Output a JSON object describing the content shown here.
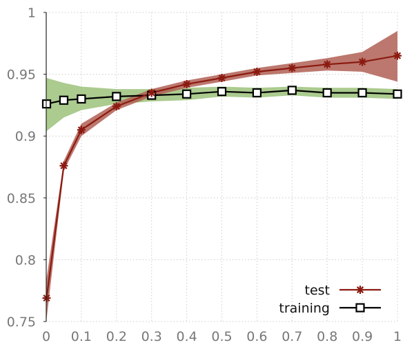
{
  "chart_data": {
    "type": "line",
    "title": "",
    "xlabel": "",
    "ylabel": "",
    "xlim": [
      0,
      1
    ],
    "ylim": [
      0.75,
      1
    ],
    "xticks": [
      0,
      0.1,
      0.2,
      0.3,
      0.4,
      0.5,
      0.6,
      0.7,
      0.8,
      0.9,
      1
    ],
    "xtick_labels": [
      "0",
      "0.1",
      "0.2",
      "0.3",
      "0.4",
      "0.5",
      "0.6",
      "0.7",
      "0.8",
      "0.9",
      "1"
    ],
    "yticks": [
      0.75,
      0.8,
      0.85,
      0.9,
      0.95,
      1
    ],
    "ytick_labels": [
      "0.75",
      "0.8",
      "0.85",
      "0.9",
      "0.95",
      "1"
    ],
    "grid": true,
    "legend_position": "bottom-right",
    "x": [
      0.001,
      0.05,
      0.1,
      0.2,
      0.3,
      0.4,
      0.5,
      0.6,
      0.7,
      0.8,
      0.9,
      1.0
    ],
    "series": [
      {
        "name": "test",
        "marker": "asterisk",
        "color": "#8b1a10",
        "band_color": "#b06055",
        "values": [
          0.769,
          0.876,
          0.905,
          0.924,
          0.935,
          0.942,
          0.947,
          0.952,
          0.955,
          0.958,
          0.96,
          0.965
        ],
        "lower": [
          0.752,
          0.872,
          0.9,
          0.921,
          0.932,
          0.939,
          0.944,
          0.949,
          0.951,
          0.953,
          0.952,
          0.944
        ],
        "upper": [
          0.785,
          0.88,
          0.91,
          0.927,
          0.938,
          0.945,
          0.95,
          0.955,
          0.959,
          0.963,
          0.968,
          0.985
        ]
      },
      {
        "name": "training",
        "marker": "square",
        "color": "#000000",
        "band_color": "#8fba6a",
        "values": [
          0.926,
          0.929,
          0.93,
          0.932,
          0.933,
          0.934,
          0.936,
          0.935,
          0.937,
          0.935,
          0.935,
          0.934
        ],
        "lower": [
          0.904,
          0.915,
          0.921,
          0.926,
          0.928,
          0.929,
          0.932,
          0.931,
          0.933,
          0.931,
          0.931,
          0.93
        ],
        "upper": [
          0.947,
          0.943,
          0.94,
          0.938,
          0.938,
          0.939,
          0.94,
          0.939,
          0.94,
          0.939,
          0.939,
          0.938
        ]
      }
    ]
  }
}
